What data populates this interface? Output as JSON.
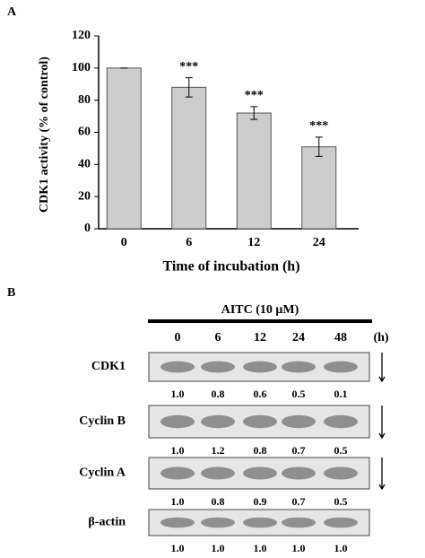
{
  "panel_a": "A",
  "chart_data": {
    "type": "bar",
    "x_label": "Time of incubation (h)",
    "y_label": "CDK1 activity (% of control)",
    "categories": [
      "0",
      "6",
      "12",
      "24"
    ],
    "values": [
      100,
      88,
      72,
      51
    ],
    "errors": [
      0,
      6,
      4,
      6
    ],
    "color": "#cccccc",
    "ylim": [
      0,
      120
    ],
    "yticks": [
      0,
      20,
      40,
      60,
      80,
      100,
      120
    ],
    "annotations": [
      {
        "category": "6",
        "text": "***"
      },
      {
        "category": "12",
        "text": "***"
      },
      {
        "category": "24",
        "text": "***"
      }
    ]
  },
  "panel_b": {
    "label": "B",
    "treatment": "AITC (10 μM)",
    "times": [
      "0",
      "6",
      "12",
      "24",
      "48"
    ],
    "time_unit": "(h)",
    "rows": [
      {
        "name": "CDK1",
        "ratios": [
          "1.0",
          "0.8",
          "0.6",
          "0.5",
          "0.1"
        ]
      },
      {
        "name": "Cyclin B",
        "ratios": [
          "1.0",
          "1.2",
          "0.8",
          "0.7",
          "0.5"
        ]
      },
      {
        "name": "Cyclin A",
        "ratios": [
          "1.0",
          "0.8",
          "0.9",
          "0.7",
          "0.5"
        ]
      },
      {
        "name": "β-actin",
        "ratios": [
          "1.0",
          "1.0",
          "1.0",
          "1.0",
          "1.0"
        ]
      }
    ]
  }
}
